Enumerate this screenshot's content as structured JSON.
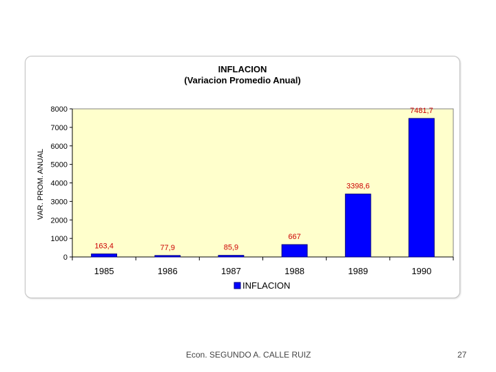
{
  "footer": {
    "author": "Econ. SEGUNDO A. CALLE RUIZ",
    "slide_number": "27"
  },
  "colors": {
    "plot_background": "#ffffcc",
    "bar_fill": "#0000ff",
    "bar_stroke": "#000080",
    "data_label": "#cc0000"
  },
  "chart_data": {
    "type": "bar",
    "title": "INFLACION",
    "subtitle": "(Variacion Promedio Anual)",
    "xlabel": "",
    "ylabel": "VAR. PROM. ANUAL",
    "categories": [
      "1985",
      "1986",
      "1987",
      "1988",
      "1989",
      "1990"
    ],
    "series": [
      {
        "name": "INFLACION",
        "values": [
          163.4,
          77.9,
          85.9,
          667,
          3398.6,
          7481.7
        ],
        "labels": [
          "163,4",
          "77,9",
          "85,9",
          "667",
          "3398,6",
          "7481,7"
        ]
      }
    ],
    "ylim": [
      0,
      8000
    ],
    "yticks": [
      0,
      1000,
      2000,
      3000,
      4000,
      5000,
      6000,
      7000,
      8000
    ],
    "grid": false,
    "legend": "bottom"
  }
}
